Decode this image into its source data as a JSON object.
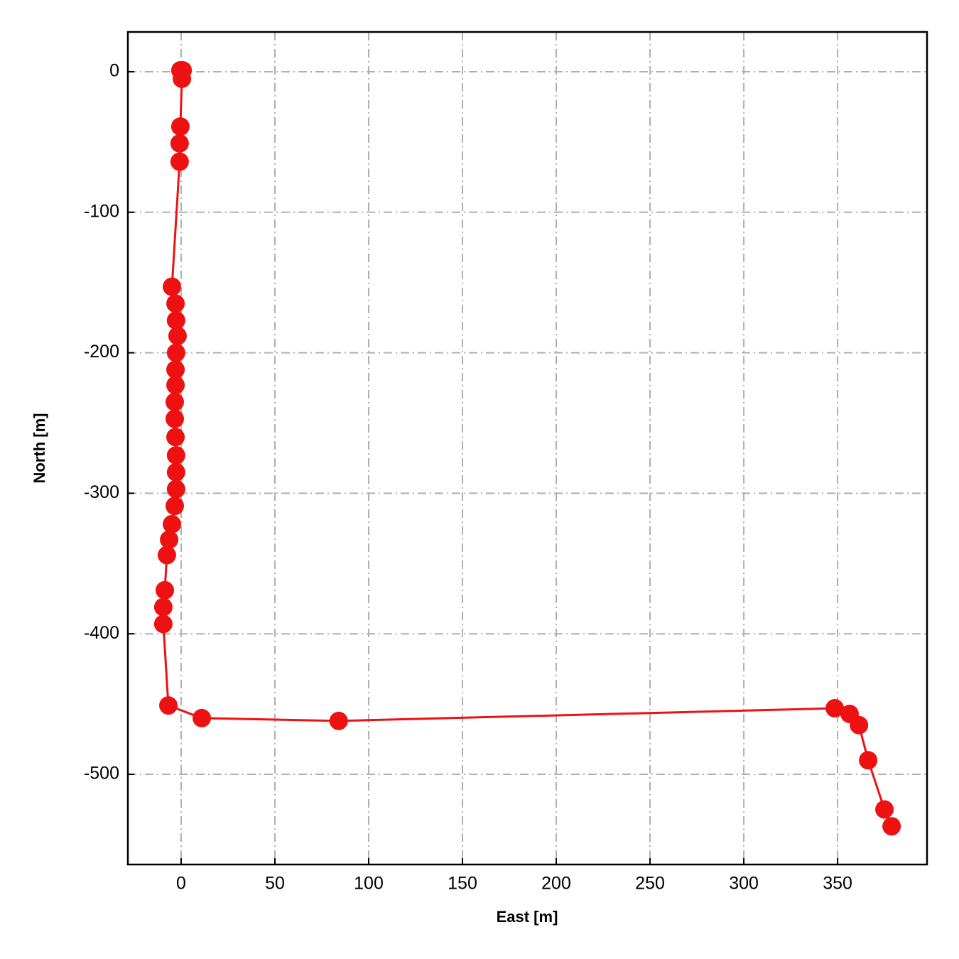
{
  "chart_data": {
    "type": "line",
    "xlabel": "East [m]",
    "ylabel": "North [m]",
    "x": [
      -0.4,
      0.8,
      0.4,
      -0.4,
      -0.8,
      -0.8,
      -4.9,
      -3,
      -2.7,
      -1.9,
      -2.7,
      -3,
      -3,
      -3.4,
      -3.4,
      -3,
      -2.7,
      -2.7,
      -2.7,
      -3.4,
      -4.9,
      -6.4,
      -7.6,
      -8.7,
      -9.5,
      -9.5,
      -6.8,
      11,
      84,
      348.5,
      356.4,
      361.4,
      366.3,
      375,
      378.8
    ],
    "series": [
      {
        "color": "#ee1111",
        "values": [
          1,
          1,
          -5,
          -39,
          -51,
          -64,
          -153,
          -165,
          -177,
          -188,
          -200,
          -212,
          -223,
          -235,
          -247,
          -260,
          -273,
          -285,
          -297,
          -309,
          -322,
          -333,
          -344,
          -369,
          -381,
          -393,
          -451,
          -460,
          -462,
          -453,
          -457,
          -465,
          -490,
          -525,
          -537
        ]
      }
    ],
    "xlim": [
      -28.4,
      397.7
    ],
    "ylim": [
      -564.2,
      28.3
    ],
    "xticks": [
      0,
      50,
      100,
      150,
      200,
      250,
      300,
      350
    ],
    "yticks": [
      0,
      -100,
      -200,
      -300,
      -400,
      -500
    ],
    "grid": true,
    "markers": true
  }
}
